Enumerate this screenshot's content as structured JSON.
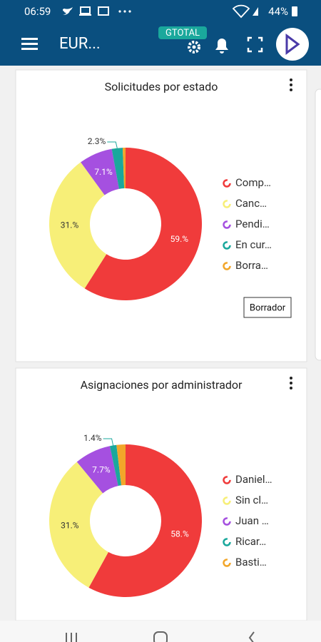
{
  "status_bar": {
    "time": "06:59",
    "battery": "44%"
  },
  "app_bar": {
    "title": "EUR...",
    "badge": "GTOTAL"
  },
  "chart_data": [
    {
      "type": "pie",
      "donut": true,
      "title": "Solicitudes por estado",
      "categories": [
        "Comp…",
        "Canc…",
        "Pendi…",
        "En cur…",
        "Borra…"
      ],
      "values": [
        59,
        31,
        7.1,
        2.3,
        0.6
      ],
      "value_labels": [
        "59.%",
        "31.%",
        "7.1%",
        "2.3%",
        null
      ],
      "colors": [
        "#f03b3b",
        "#f7ef78",
        "#a550e0",
        "#1aa89c",
        "#f2a62a"
      ],
      "button": "Borrador"
    },
    {
      "type": "pie",
      "donut": true,
      "title": "Asignaciones por administrador",
      "categories": [
        "Daniel…",
        "Sin cl…",
        "Juan …",
        "Ricar…",
        "Basti…"
      ],
      "values": [
        58,
        31,
        7.7,
        1.4,
        1.9
      ],
      "value_labels": [
        "58.%",
        "31.%",
        "7.7%",
        "1.4%",
        null
      ],
      "colors": [
        "#f03b3b",
        "#f7ef78",
        "#a550e0",
        "#1aa89c",
        "#f2a62a"
      ]
    }
  ]
}
